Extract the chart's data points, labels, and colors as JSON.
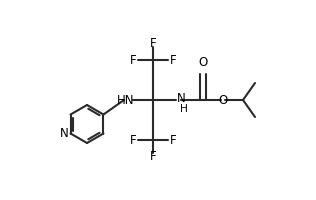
{
  "background": "#ffffff",
  "figsize": [
    3.16,
    2.0
  ],
  "dpi": 100,
  "linewidth": 1.5,
  "font_size": 8.5,
  "bond_color": "#2a2a2a",
  "text_color": "#000000",
  "xlim": [
    0,
    1
  ],
  "ylim": [
    0,
    1
  ]
}
